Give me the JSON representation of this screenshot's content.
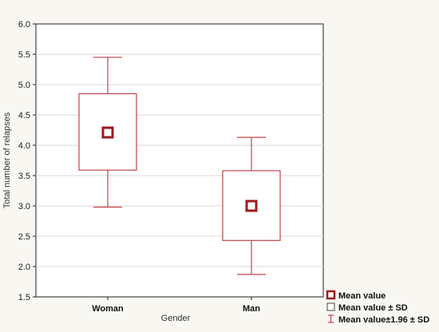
{
  "chart_data": {
    "type": "box",
    "title": "",
    "xlabel": "Gender",
    "ylabel": "Total number of relapses",
    "ylim": [
      1.5,
      6.0
    ],
    "yticks": [
      "1.5",
      "2.0",
      "2.5",
      "3.0",
      "3.5",
      "4.0",
      "4.5",
      "5.0",
      "5.5",
      "6.0"
    ],
    "grid": true,
    "categories": [
      "Woman",
      "Man"
    ],
    "series": [
      {
        "category": "Woman",
        "mean": 4.21,
        "sd_low": 3.59,
        "sd_high": 4.85,
        "whisker_low": 2.98,
        "whisker_high": 5.45
      },
      {
        "category": "Man",
        "mean": 3.0,
        "sd_low": 2.43,
        "sd_high": 3.58,
        "whisker_low": 1.87,
        "whisker_high": 4.13
      }
    ],
    "legend_position": "bottom-right",
    "legend": [
      {
        "symbol": "mean-square",
        "label": "Mean value"
      },
      {
        "symbol": "sd-box",
        "label": "Mean value ± SD"
      },
      {
        "symbol": "whisker",
        "label": "Mean value±1.96 ± SD"
      }
    ],
    "colors": {
      "series": "#9b1b1f",
      "box": "#c0454a",
      "grid": "#d9d9d9",
      "axis": "#222222",
      "plot_bg": "#ffffff"
    }
  }
}
